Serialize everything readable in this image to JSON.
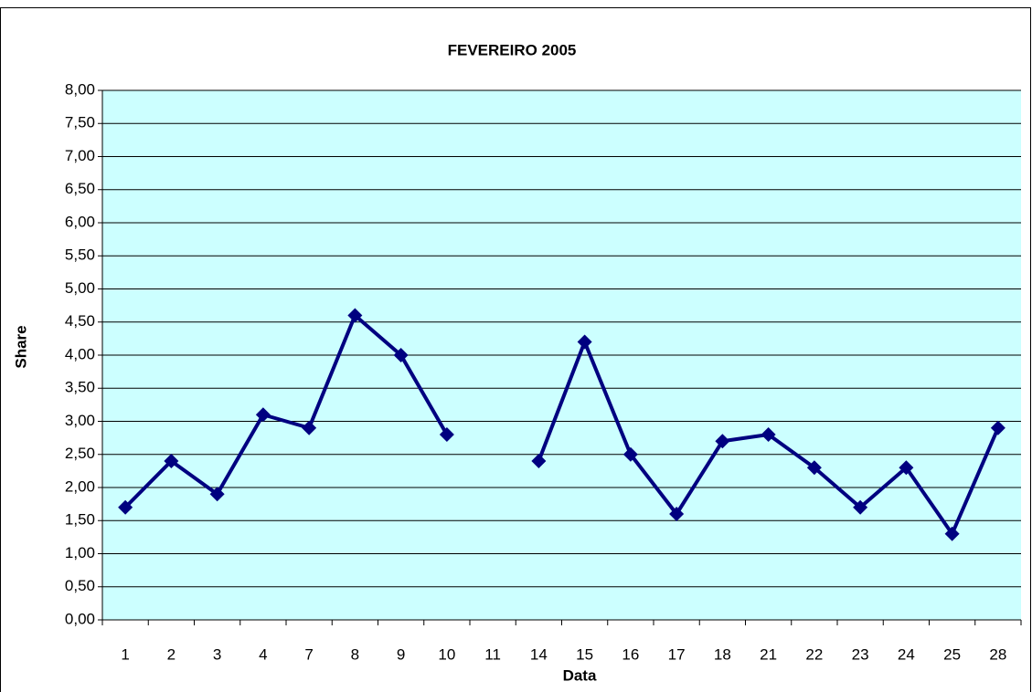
{
  "chart_data": {
    "type": "line",
    "title": "FEVEREIRO 2005",
    "x_label": "Data",
    "y_label": "Share",
    "categories": [
      "1",
      "2",
      "3",
      "4",
      "7",
      "8",
      "9",
      "10",
      "11",
      "14",
      "15",
      "16",
      "17",
      "18",
      "21",
      "22",
      "23",
      "24",
      "25",
      "28"
    ],
    "series": [
      {
        "name": "Share",
        "color": "#000080",
        "values": [
          1.7,
          2.4,
          1.9,
          3.1,
          2.9,
          4.6,
          4.0,
          2.8,
          null,
          2.4,
          4.2,
          2.5,
          1.6,
          2.7,
          2.8,
          2.3,
          1.7,
          2.3,
          1.3,
          2.9
        ]
      }
    ],
    "ylim": [
      0,
      8
    ],
    "yticks": [
      {
        "value": 0,
        "label": "0,00"
      },
      {
        "value": 0.5,
        "label": "0,50"
      },
      {
        "value": 1,
        "label": "1,00"
      },
      {
        "value": 1.5,
        "label": "1,50"
      },
      {
        "value": 2,
        "label": "2,00"
      },
      {
        "value": 2.5,
        "label": "2,50"
      },
      {
        "value": 3,
        "label": "3,00"
      },
      {
        "value": 3.5,
        "label": "3,50"
      },
      {
        "value": 4,
        "label": "4,00"
      },
      {
        "value": 4.5,
        "label": "4,50"
      },
      {
        "value": 5,
        "label": "5,00"
      },
      {
        "value": 5.5,
        "label": "5,50"
      },
      {
        "value": 6,
        "label": "6,00"
      },
      {
        "value": 6.5,
        "label": "6,50"
      },
      {
        "value": 7,
        "label": "7,00"
      },
      {
        "value": 7.5,
        "label": "7,50"
      },
      {
        "value": 8,
        "label": "8,00"
      }
    ],
    "grid": true,
    "plot_background": "#ccffff"
  }
}
